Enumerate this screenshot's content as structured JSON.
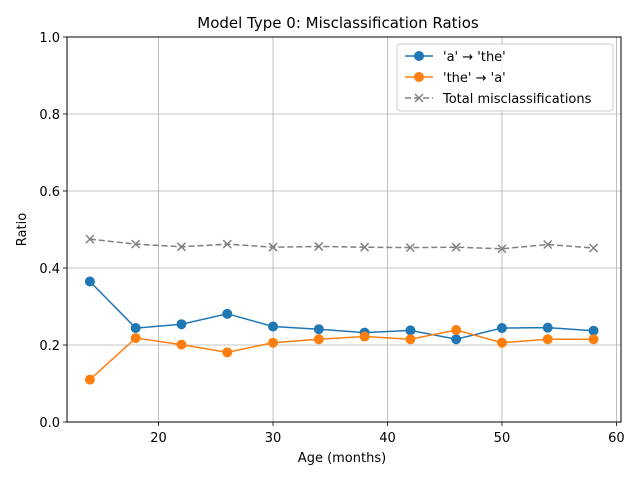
{
  "chart_data": {
    "type": "line",
    "title": "Model Type 0: Misclassification Ratios",
    "xlabel": "Age (months)",
    "ylabel": "Ratio",
    "xlim": [
      12,
      60.4
    ],
    "ylim": [
      0.0,
      1.0
    ],
    "x_ticks": [
      20,
      30,
      40,
      50,
      60
    ],
    "y_ticks": [
      0.0,
      0.2,
      0.4,
      0.6,
      0.8,
      1.0
    ],
    "grid": true,
    "legend_position": "top-right",
    "x": [
      14,
      18,
      22,
      26,
      30,
      34,
      38,
      42,
      46,
      50,
      54,
      58
    ],
    "series": [
      {
        "name": "'a' → 'the'",
        "color": "#1f77b4",
        "line_style": "solid",
        "marker": "circle",
        "values": [
          0.365,
          0.244,
          0.254,
          0.281,
          0.248,
          0.241,
          0.232,
          0.238,
          0.215,
          0.244,
          0.245,
          0.237
        ]
      },
      {
        "name": "'the' → 'a'",
        "color": "#ff7f0e",
        "line_style": "solid",
        "marker": "circle",
        "values": [
          0.11,
          0.218,
          0.201,
          0.181,
          0.206,
          0.215,
          0.222,
          0.215,
          0.239,
          0.206,
          0.215,
          0.215
        ]
      },
      {
        "name": "Total misclassifications",
        "color": "#808080",
        "line_style": "dashed",
        "marker": "x",
        "values": [
          0.475,
          0.462,
          0.455,
          0.462,
          0.454,
          0.456,
          0.454,
          0.453,
          0.454,
          0.45,
          0.461,
          0.452
        ]
      }
    ]
  }
}
